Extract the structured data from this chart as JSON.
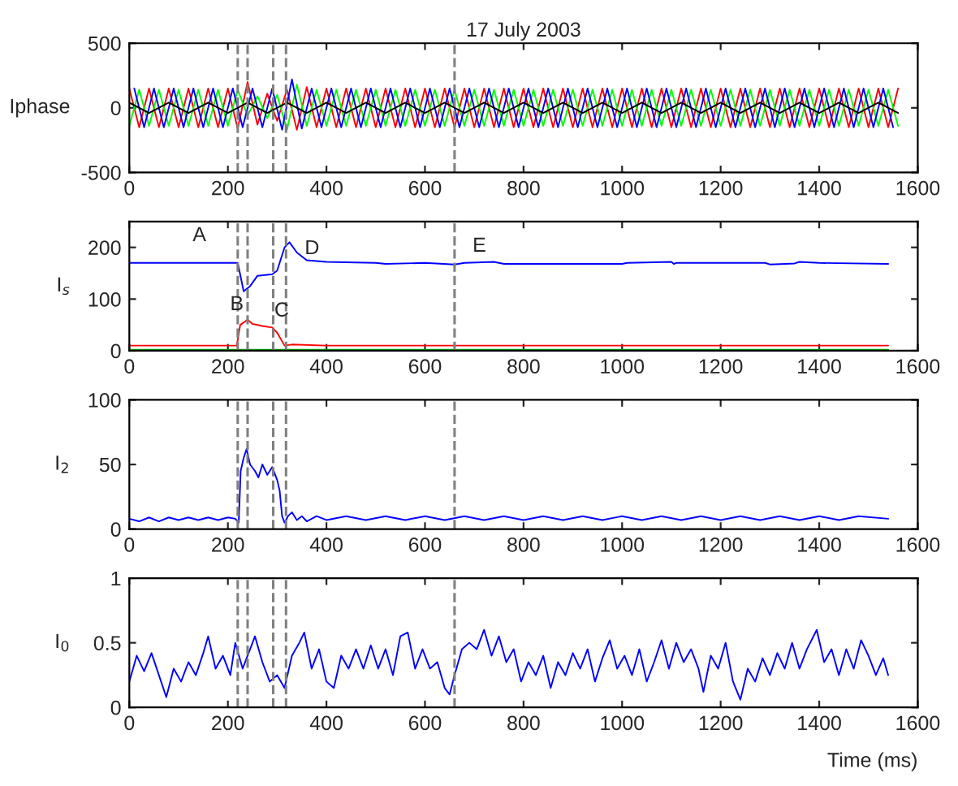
{
  "chart_data": [
    {
      "type": "line",
      "title": "17 July 2003",
      "ylabel": "Iphase",
      "xlim": [
        0,
        1600
      ],
      "xticks": [
        0,
        200,
        400,
        600,
        800,
        1000,
        1200,
        1400,
        1600
      ],
      "ylim": [
        -500,
        500
      ],
      "yticks": [
        -500,
        0,
        500
      ],
      "grid": false,
      "x": [
        0,
        20,
        40,
        60,
        80,
        100,
        120,
        140,
        160,
        180,
        200,
        220,
        240,
        260,
        280,
        300,
        320,
        340,
        360,
        380,
        400,
        420,
        440,
        460,
        480,
        500,
        520,
        540,
        560,
        580,
        600,
        620,
        640,
        660,
        680,
        700,
        720,
        740,
        760,
        780,
        800,
        820,
        840,
        860,
        880,
        900,
        920,
        940,
        960,
        980,
        1000,
        1020,
        1040,
        1060,
        1080,
        1100,
        1120,
        1140,
        1160,
        1180,
        1200,
        1220,
        1240,
        1260,
        1280,
        1300,
        1320,
        1340,
        1360,
        1380,
        1400,
        1420,
        1440,
        1460,
        1480,
        1500,
        1520,
        1540,
        1560
      ],
      "series": [
        {
          "color": "#ff0000",
          "values": [
            150,
            -150,
            150,
            -150,
            150,
            -150,
            150,
            -150,
            150,
            -150,
            150,
            -160,
            200,
            -130,
            110,
            -100,
            140,
            -170,
            160,
            -150,
            150,
            -150,
            150,
            -150,
            150,
            -150,
            150,
            -150,
            150,
            -150,
            150,
            -150,
            150,
            -150,
            150,
            -150,
            150,
            -150,
            150,
            -150,
            150,
            -150,
            150,
            -150,
            150,
            -150,
            150,
            -150,
            150,
            -150,
            150,
            -150,
            150,
            -150,
            150,
            -150,
            150,
            -150,
            150,
            -150,
            150,
            -150,
            150,
            -150,
            150,
            -150,
            150,
            -150,
            150,
            -150,
            150,
            -150,
            150,
            -150,
            150,
            -150,
            150,
            -150,
            150
          ]
        },
        {
          "color": "#00ff00",
          "values": [
            -140,
            140,
            -140,
            140,
            -140,
            140,
            -140,
            140,
            -140,
            140,
            -140,
            140,
            -60,
            90,
            -80,
            100,
            -170,
            180,
            -140,
            140,
            -140,
            140,
            -140,
            140,
            -140,
            140,
            -140,
            140,
            -140,
            140,
            -140,
            140,
            -140,
            140,
            -140,
            140,
            -140,
            140,
            -140,
            140,
            -140,
            140,
            -140,
            140,
            -140,
            140,
            -140,
            140,
            -140,
            140,
            -140,
            140,
            -140,
            140,
            -140,
            140,
            -140,
            140,
            -140,
            140,
            -140,
            140,
            -140,
            140,
            -140,
            140,
            -140,
            140,
            -140,
            140,
            -140,
            140,
            -140,
            140,
            -140,
            140,
            -140,
            140,
            -140
          ]
        },
        {
          "color": "#0000ff",
          "x": [
            10,
            30,
            50,
            70,
            90,
            110,
            130,
            150,
            170,
            190,
            210,
            230,
            250,
            270,
            290,
            310,
            330,
            350,
            370,
            390,
            410,
            430,
            450,
            470,
            490,
            510,
            530,
            550,
            570,
            590,
            610,
            630,
            650,
            670,
            690,
            710,
            730,
            750,
            770,
            790,
            810,
            830,
            850,
            870,
            890,
            910,
            930,
            950,
            970,
            990,
            1010,
            1030,
            1050,
            1070,
            1090,
            1110,
            1130,
            1150,
            1170,
            1190,
            1210,
            1230,
            1250,
            1270,
            1290,
            1310,
            1330,
            1350,
            1370,
            1390,
            1410,
            1430,
            1450,
            1470,
            1490,
            1510,
            1530,
            1550
          ],
          "values": [
            150,
            -150,
            150,
            -150,
            150,
            -150,
            150,
            -150,
            150,
            -150,
            150,
            -150,
            150,
            -150,
            150,
            -170,
            220,
            -160,
            150,
            -150,
            150,
            -150,
            150,
            -150,
            150,
            -150,
            150,
            -150,
            150,
            -150,
            150,
            -150,
            150,
            -150,
            150,
            -150,
            150,
            -150,
            150,
            -150,
            150,
            -150,
            150,
            -150,
            150,
            -150,
            150,
            -150,
            150,
            -150,
            150,
            -150,
            150,
            -150,
            150,
            -150,
            150,
            -150,
            150,
            -150,
            150,
            -150,
            150,
            -150,
            150,
            -150,
            150,
            -150,
            150,
            -150,
            150,
            -150,
            150,
            -150,
            150,
            -150,
            150,
            -150
          ]
        },
        {
          "color": "#000000",
          "x": [
            0,
            40,
            80,
            120,
            160,
            200,
            240,
            280,
            320,
            360,
            400,
            440,
            480,
            520,
            560,
            600,
            640,
            680,
            720,
            760,
            800,
            840,
            880,
            920,
            960,
            1000,
            1040,
            1080,
            1120,
            1160,
            1200,
            1240,
            1280,
            1320,
            1360,
            1400,
            1440,
            1480,
            1520,
            1560
          ],
          "values": [
            40,
            -40,
            40,
            -40,
            40,
            -40,
            40,
            -40,
            40,
            -40,
            40,
            -40,
            40,
            -40,
            40,
            -40,
            40,
            -40,
            40,
            -40,
            40,
            -40,
            40,
            -40,
            40,
            -40,
            40,
            -40,
            40,
            -40,
            40,
            -40,
            40,
            -40,
            40,
            -40,
            40,
            -40,
            40,
            -40
          ]
        }
      ],
      "ref_lines": [
        {
          "axis": "x",
          "value": 220,
          "color": "#808080",
          "line_style": "dashed"
        },
        {
          "axis": "x",
          "value": 240,
          "color": "#808080",
          "line_style": "dashed"
        },
        {
          "axis": "x",
          "value": 292,
          "color": "#808080",
          "line_style": "dashed"
        },
        {
          "axis": "x",
          "value": 318,
          "color": "#808080",
          "line_style": "dashed"
        },
        {
          "axis": "x",
          "value": 660,
          "color": "#808080",
          "line_style": "dashed"
        }
      ]
    },
    {
      "type": "line",
      "ylabel": "I$_{s}$",
      "xlim": [
        0,
        1600
      ],
      "xticks": [
        0,
        200,
        400,
        600,
        800,
        1000,
        1200,
        1400,
        1600
      ],
      "ylim": [
        0,
        250
      ],
      "yticks": [
        0,
        100,
        200
      ],
      "grid": false,
      "series": [
        {
          "color": "#0000ff",
          "x": [
            0,
            220,
            232,
            245,
            260,
            290,
            300,
            315,
            325,
            340,
            360,
            400,
            500,
            520,
            600,
            660,
            680,
            740,
            760,
            1000,
            1010,
            1100,
            1105,
            1110,
            1290,
            1300,
            1350,
            1360,
            1400,
            1540
          ],
          "values": [
            170,
            170,
            115,
            125,
            145,
            148,
            155,
            200,
            210,
            190,
            175,
            172,
            170,
            168,
            170,
            167,
            170,
            172,
            168,
            168,
            170,
            172,
            168,
            170,
            170,
            167,
            169,
            172,
            170,
            168
          ]
        },
        {
          "color": "#ff0000",
          "x": [
            0,
            218,
            225,
            240,
            250,
            270,
            290,
            300,
            315,
            330,
            400,
            1540
          ],
          "values": [
            10,
            10,
            50,
            60,
            52,
            48,
            45,
            35,
            10,
            12,
            10,
            10
          ]
        },
        {
          "color": "#00b000",
          "x": [
            0,
            1540
          ],
          "values": [
            2,
            2
          ]
        }
      ],
      "annotations": [
        {
          "text": "A",
          "x": 220,
          "y": 170
        },
        {
          "text": "B",
          "x": 232,
          "y": 115
        },
        {
          "text": "C",
          "x": 300,
          "y": 155
        },
        {
          "text": "D",
          "x": 325,
          "y": 210
        },
        {
          "text": "E",
          "x": 660,
          "y": 167
        }
      ],
      "ref_lines": [
        {
          "axis": "x",
          "value": 220,
          "color": "#808080",
          "line_style": "dashed"
        },
        {
          "axis": "x",
          "value": 240,
          "color": "#808080",
          "line_style": "dashed"
        },
        {
          "axis": "x",
          "value": 292,
          "color": "#808080",
          "line_style": "dashed"
        },
        {
          "axis": "x",
          "value": 318,
          "color": "#808080",
          "line_style": "dashed"
        },
        {
          "axis": "x",
          "value": 660,
          "color": "#808080",
          "line_style": "dashed"
        }
      ]
    },
    {
      "type": "line",
      "ylabel": "I$_{2}$",
      "xlim": [
        0,
        1600
      ],
      "xticks": [
        0,
        200,
        400,
        600,
        800,
        1000,
        1200,
        1400,
        1600
      ],
      "ylim": [
        0,
        100
      ],
      "yticks": [
        0,
        50,
        100
      ],
      "grid": false,
      "series": [
        {
          "color": "#0000ff",
          "x": [
            0,
            20,
            40,
            60,
            80,
            100,
            120,
            140,
            160,
            180,
            200,
            215,
            222,
            226,
            232,
            238,
            245,
            255,
            262,
            270,
            280,
            290,
            300,
            305,
            310,
            315,
            322,
            330,
            340,
            350,
            360,
            380,
            400,
            440,
            480,
            520,
            560,
            600,
            640,
            680,
            720,
            760,
            800,
            840,
            880,
            920,
            960,
            1000,
            1040,
            1080,
            1120,
            1160,
            1200,
            1240,
            1280,
            1320,
            1360,
            1400,
            1440,
            1480,
            1540
          ],
          "values": [
            8,
            6,
            9,
            6,
            9,
            7,
            9,
            7,
            9,
            7,
            9,
            8,
            5,
            45,
            55,
            62,
            50,
            45,
            40,
            50,
            42,
            48,
            38,
            30,
            10,
            5,
            10,
            13,
            7,
            10,
            6,
            10,
            7,
            10,
            7,
            10,
            7,
            10,
            7,
            10,
            7,
            10,
            7,
            10,
            7,
            10,
            7,
            10,
            7,
            10,
            7,
            10,
            7,
            10,
            7,
            10,
            7,
            10,
            7,
            10,
            8
          ]
        }
      ],
      "ref_lines": [
        {
          "axis": "x",
          "value": 220,
          "color": "#808080",
          "line_style": "dashed"
        },
        {
          "axis": "x",
          "value": 240,
          "color": "#808080",
          "line_style": "dashed"
        },
        {
          "axis": "x",
          "value": 292,
          "color": "#808080",
          "line_style": "dashed"
        },
        {
          "axis": "x",
          "value": 318,
          "color": "#808080",
          "line_style": "dashed"
        },
        {
          "axis": "x",
          "value": 660,
          "color": "#808080",
          "line_style": "dashed"
        }
      ]
    },
    {
      "type": "line",
      "ylabel": "I$_{0}$",
      "xlabel": "Time (ms)",
      "xlim": [
        0,
        1600
      ],
      "xticks": [
        0,
        200,
        400,
        600,
        800,
        1000,
        1200,
        1400,
        1600
      ],
      "ylim": [
        0,
        1
      ],
      "yticks": [
        0,
        0.5,
        1
      ],
      "grid": false,
      "series": [
        {
          "color": "#0000ff",
          "x": [
            0,
            15,
            30,
            45,
            60,
            75,
            90,
            105,
            120,
            135,
            150,
            160,
            175,
            190,
            205,
            215,
            230,
            245,
            255,
            270,
            285,
            300,
            315,
            330,
            345,
            355,
            370,
            385,
            400,
            415,
            430,
            445,
            460,
            475,
            490,
            505,
            520,
            535,
            550,
            565,
            580,
            595,
            610,
            625,
            640,
            650,
            660,
            675,
            690,
            705,
            720,
            735,
            750,
            765,
            780,
            795,
            810,
            825,
            840,
            855,
            870,
            885,
            900,
            915,
            930,
            945,
            960,
            975,
            990,
            1005,
            1020,
            1035,
            1050,
            1065,
            1080,
            1095,
            1110,
            1125,
            1140,
            1155,
            1165,
            1180,
            1195,
            1210,
            1225,
            1240,
            1255,
            1270,
            1285,
            1300,
            1315,
            1330,
            1345,
            1360,
            1375,
            1395,
            1410,
            1425,
            1440,
            1455,
            1470,
            1485,
            1500,
            1515,
            1530,
            1540
          ],
          "values": [
            0.2,
            0.4,
            0.28,
            0.42,
            0.25,
            0.08,
            0.3,
            0.2,
            0.35,
            0.25,
            0.42,
            0.55,
            0.3,
            0.4,
            0.25,
            0.5,
            0.3,
            0.45,
            0.55,
            0.35,
            0.2,
            0.25,
            0.15,
            0.4,
            0.5,
            0.58,
            0.3,
            0.45,
            0.2,
            0.15,
            0.4,
            0.3,
            0.45,
            0.3,
            0.48,
            0.3,
            0.45,
            0.25,
            0.55,
            0.58,
            0.3,
            0.45,
            0.3,
            0.35,
            0.15,
            0.1,
            0.25,
            0.45,
            0.5,
            0.45,
            0.6,
            0.4,
            0.55,
            0.35,
            0.45,
            0.2,
            0.35,
            0.25,
            0.4,
            0.15,
            0.35,
            0.25,
            0.42,
            0.3,
            0.45,
            0.2,
            0.38,
            0.52,
            0.3,
            0.4,
            0.25,
            0.45,
            0.2,
            0.35,
            0.52,
            0.3,
            0.5,
            0.35,
            0.45,
            0.3,
            0.12,
            0.4,
            0.3,
            0.5,
            0.2,
            0.06,
            0.3,
            0.2,
            0.38,
            0.25,
            0.42,
            0.3,
            0.5,
            0.3,
            0.45,
            0.6,
            0.35,
            0.45,
            0.25,
            0.45,
            0.3,
            0.52,
            0.4,
            0.25,
            0.38,
            0.25
          ]
        }
      ],
      "ref_lines": [
        {
          "axis": "x",
          "value": 220,
          "color": "#808080",
          "line_style": "dashed"
        },
        {
          "axis": "x",
          "value": 240,
          "color": "#808080",
          "line_style": "dashed"
        },
        {
          "axis": "x",
          "value": 292,
          "color": "#808080",
          "line_style": "dashed"
        },
        {
          "axis": "x",
          "value": 318,
          "color": "#808080",
          "line_style": "dashed"
        },
        {
          "axis": "x",
          "value": 660,
          "color": "#808080",
          "line_style": "dashed"
        }
      ]
    }
  ]
}
